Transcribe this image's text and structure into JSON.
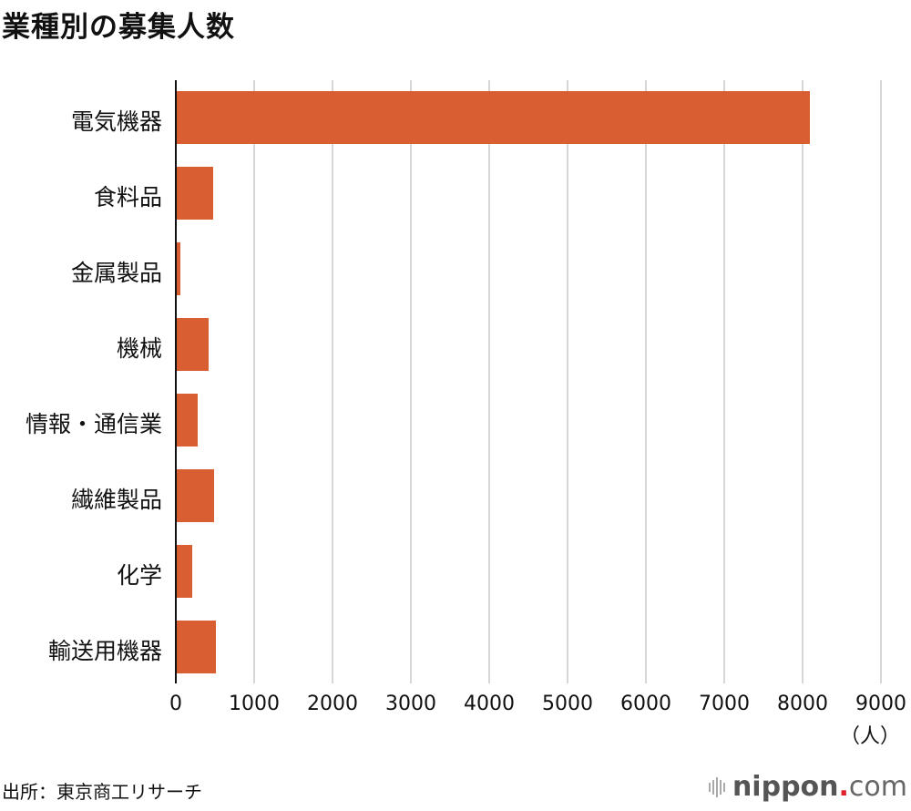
{
  "title": "業種別の募集人数",
  "chart_data": {
    "type": "bar",
    "orientation": "horizontal",
    "title": "業種別の募集人数",
    "categories": [
      "電気機器",
      "食料品",
      "金属製品",
      "機械",
      "情報・通信業",
      "繊維製品",
      "化学",
      "輸送用機器"
    ],
    "values": [
      8080,
      460,
      50,
      410,
      270,
      480,
      200,
      495
    ],
    "xlabel": "（人）",
    "ylabel": "",
    "xlim": [
      0,
      9000
    ],
    "xticks": [
      "0",
      "1000",
      "2000",
      "3000",
      "4000",
      "5000",
      "6000",
      "7000",
      "8000",
      "9000"
    ],
    "grid": true,
    "bar_color": "#d95f33"
  },
  "unit_label": "（人）",
  "source": "出所：東京商工リサーチ",
  "logo": {
    "name": "nippon",
    "dot": ".",
    "suffix": "com"
  }
}
